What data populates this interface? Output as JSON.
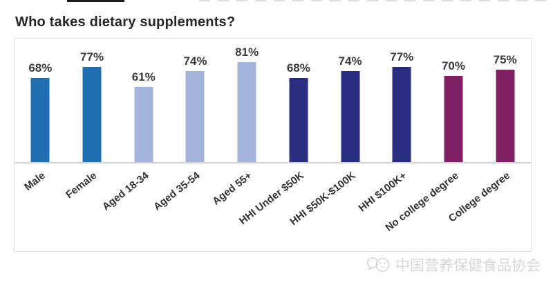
{
  "page": {
    "title": "Who takes dietary supplements?"
  },
  "chart_data": {
    "type": "bar",
    "title": "Who takes dietary supplements?",
    "categories": [
      "Male",
      "Female",
      "Aged 18-34",
      "Aged 35-54",
      "Aged 55+",
      "HHI Under $50K",
      "HHI $50K-$100K",
      "HHI $100K+",
      "No college degree",
      "College degree"
    ],
    "values": [
      68,
      77,
      61,
      74,
      81,
      68,
      74,
      77,
      70,
      75
    ],
    "value_labels": [
      "68%",
      "77%",
      "61%",
      "74%",
      "81%",
      "68%",
      "74%",
      "77%",
      "70%",
      "75%"
    ],
    "bar_colors": [
      "#1F6FB2",
      "#1F6FB2",
      "#A3B3DA",
      "#A3B3DA",
      "#A3B3DA",
      "#292E80",
      "#292E80",
      "#292E80",
      "#7E2063",
      "#7E2063"
    ],
    "groups": [
      {
        "name": "gender",
        "color": "#1F6FB2"
      },
      {
        "name": "age",
        "color": "#A3B3DA"
      },
      {
        "name": "household-income",
        "color": "#292E80"
      },
      {
        "name": "education",
        "color": "#7E2063"
      }
    ],
    "xlabel": "",
    "ylabel": "",
    "ylim": [
      0,
      100
    ],
    "grid": false,
    "legend": "none",
    "value_label_color": "#3b3b3b",
    "axis_line_color": "#d2d2d2"
  },
  "watermark": {
    "text": "中国营养保健食品协会",
    "logo": "wechat-smiley-bubbles-logo",
    "color": "#d7d7d7"
  }
}
